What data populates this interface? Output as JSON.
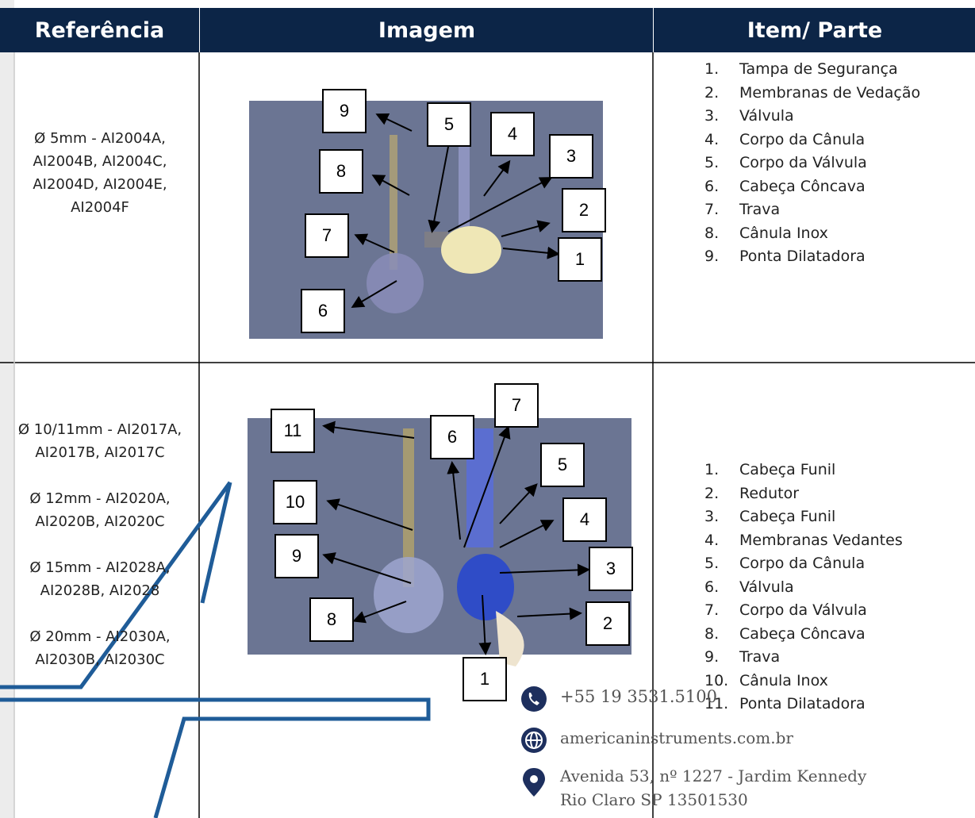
{
  "header": {
    "columns": [
      "Referência",
      "Imagem",
      "Item/ Parte"
    ]
  },
  "rows": [
    {
      "reference": [
        "Ø 5mm - AI2004A, AI2004B, AI2004C, AI2004D, AI2004E, AI2004F"
      ],
      "image_labels": [
        "9",
        "5",
        "4",
        "3",
        "8",
        "2",
        "7",
        "1",
        "6"
      ],
      "items": [
        {
          "n": "1.",
          "text": "Tampa de Segurança"
        },
        {
          "n": "2.",
          "text": "Membranas de Vedação"
        },
        {
          "n": "3.",
          "text": "Válvula"
        },
        {
          "n": "4.",
          "text": "Corpo da Cânula"
        },
        {
          "n": "5.",
          "text": "Corpo da Válvula"
        },
        {
          "n": "6.",
          "text": "Cabeça Côncava"
        },
        {
          "n": "7.",
          "text": "Trava"
        },
        {
          "n": "8.",
          "text": "Cânula Inox"
        },
        {
          "n": "9.",
          "text": "Ponta Dilatadora"
        }
      ]
    },
    {
      "reference": [
        "Ø 10/11mm - AI2017A, AI2017B, AI2017C",
        "Ø 12mm - AI2020A, AI2020B, AI2020C",
        "Ø 15mm - AI2028A, AI2028B, AI2028",
        "Ø 20mm - AI2030A, AI2030B, AI2030C"
      ],
      "image_labels": [
        "11",
        "7",
        "6",
        "5",
        "10",
        "4",
        "9",
        "3",
        "8",
        "2",
        "1"
      ],
      "items": [
        {
          "n": "1.",
          "text": "Cabeça Funil"
        },
        {
          "n": "2.",
          "text": "Redutor"
        },
        {
          "n": "3.",
          "text": "Cabeça Funil"
        },
        {
          "n": "4.",
          "text": "Membranas Vedantes"
        },
        {
          "n": "5.",
          "text": "Corpo da Cânula"
        },
        {
          "n": "6.",
          "text": "Válvula"
        },
        {
          "n": "7.",
          "text": "Corpo da Válvula"
        },
        {
          "n": "8.",
          "text": "Cabeça Côncava"
        },
        {
          "n": "9.",
          "text": "Trava"
        },
        {
          "n": "10.",
          "text": "Cânula Inox"
        },
        {
          "n": "11.",
          "text": "Ponta Dilatadora"
        }
      ]
    }
  ],
  "contact": {
    "phone": "+55 19 3531.5100",
    "website": "americaninstruments.com.br",
    "address": [
      "Avenida 53, nº 1227 - Jardim Kennedy",
      "Rio Claro SP 13501530"
    ]
  }
}
